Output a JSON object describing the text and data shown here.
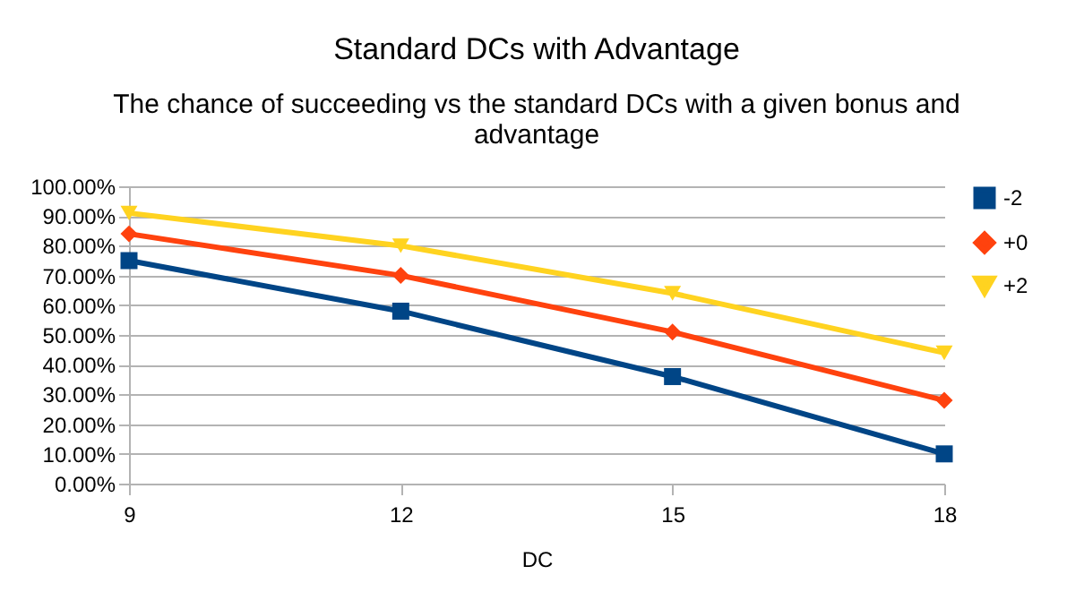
{
  "chart_data": {
    "type": "line",
    "title": "Standard DCs with Advantage",
    "subtitle": "The chance of succeeding vs the standard DCs with a given bonus and advantage",
    "xlabel": "DC",
    "x": [
      9,
      12,
      15,
      18
    ],
    "series": [
      {
        "name": "-2",
        "color": "#004586",
        "marker": "square",
        "values": [
          75,
          58,
          36,
          10
        ]
      },
      {
        "name": "+0",
        "color": "#ff420e",
        "marker": "diamond",
        "values": [
          84,
          70,
          51,
          28
        ]
      },
      {
        "name": "+2",
        "color": "#ffd320",
        "marker": "triangle",
        "values": [
          91,
          80,
          64,
          44
        ]
      }
    ],
    "xlim": [
      9,
      18
    ],
    "xticks": [
      9,
      12,
      15,
      18
    ],
    "ylim": [
      0,
      100
    ],
    "yticks": [
      {
        "value": 0,
        "label": "0.00%"
      },
      {
        "value": 10,
        "label": "10.00%"
      },
      {
        "value": 20,
        "label": "20.00%"
      },
      {
        "value": 30,
        "label": "30.00%"
      },
      {
        "value": 40,
        "label": "40.00%"
      },
      {
        "value": 50,
        "label": "50.00%"
      },
      {
        "value": 60,
        "label": "60.00%"
      },
      {
        "value": 70,
        "label": "70.00%"
      },
      {
        "value": 80,
        "label": "80.00%"
      },
      {
        "value": 90,
        "label": "90.00%"
      },
      {
        "value": 100,
        "label": "100.00%"
      }
    ],
    "grid": "y",
    "legend": "right",
    "line_style": "solid"
  }
}
